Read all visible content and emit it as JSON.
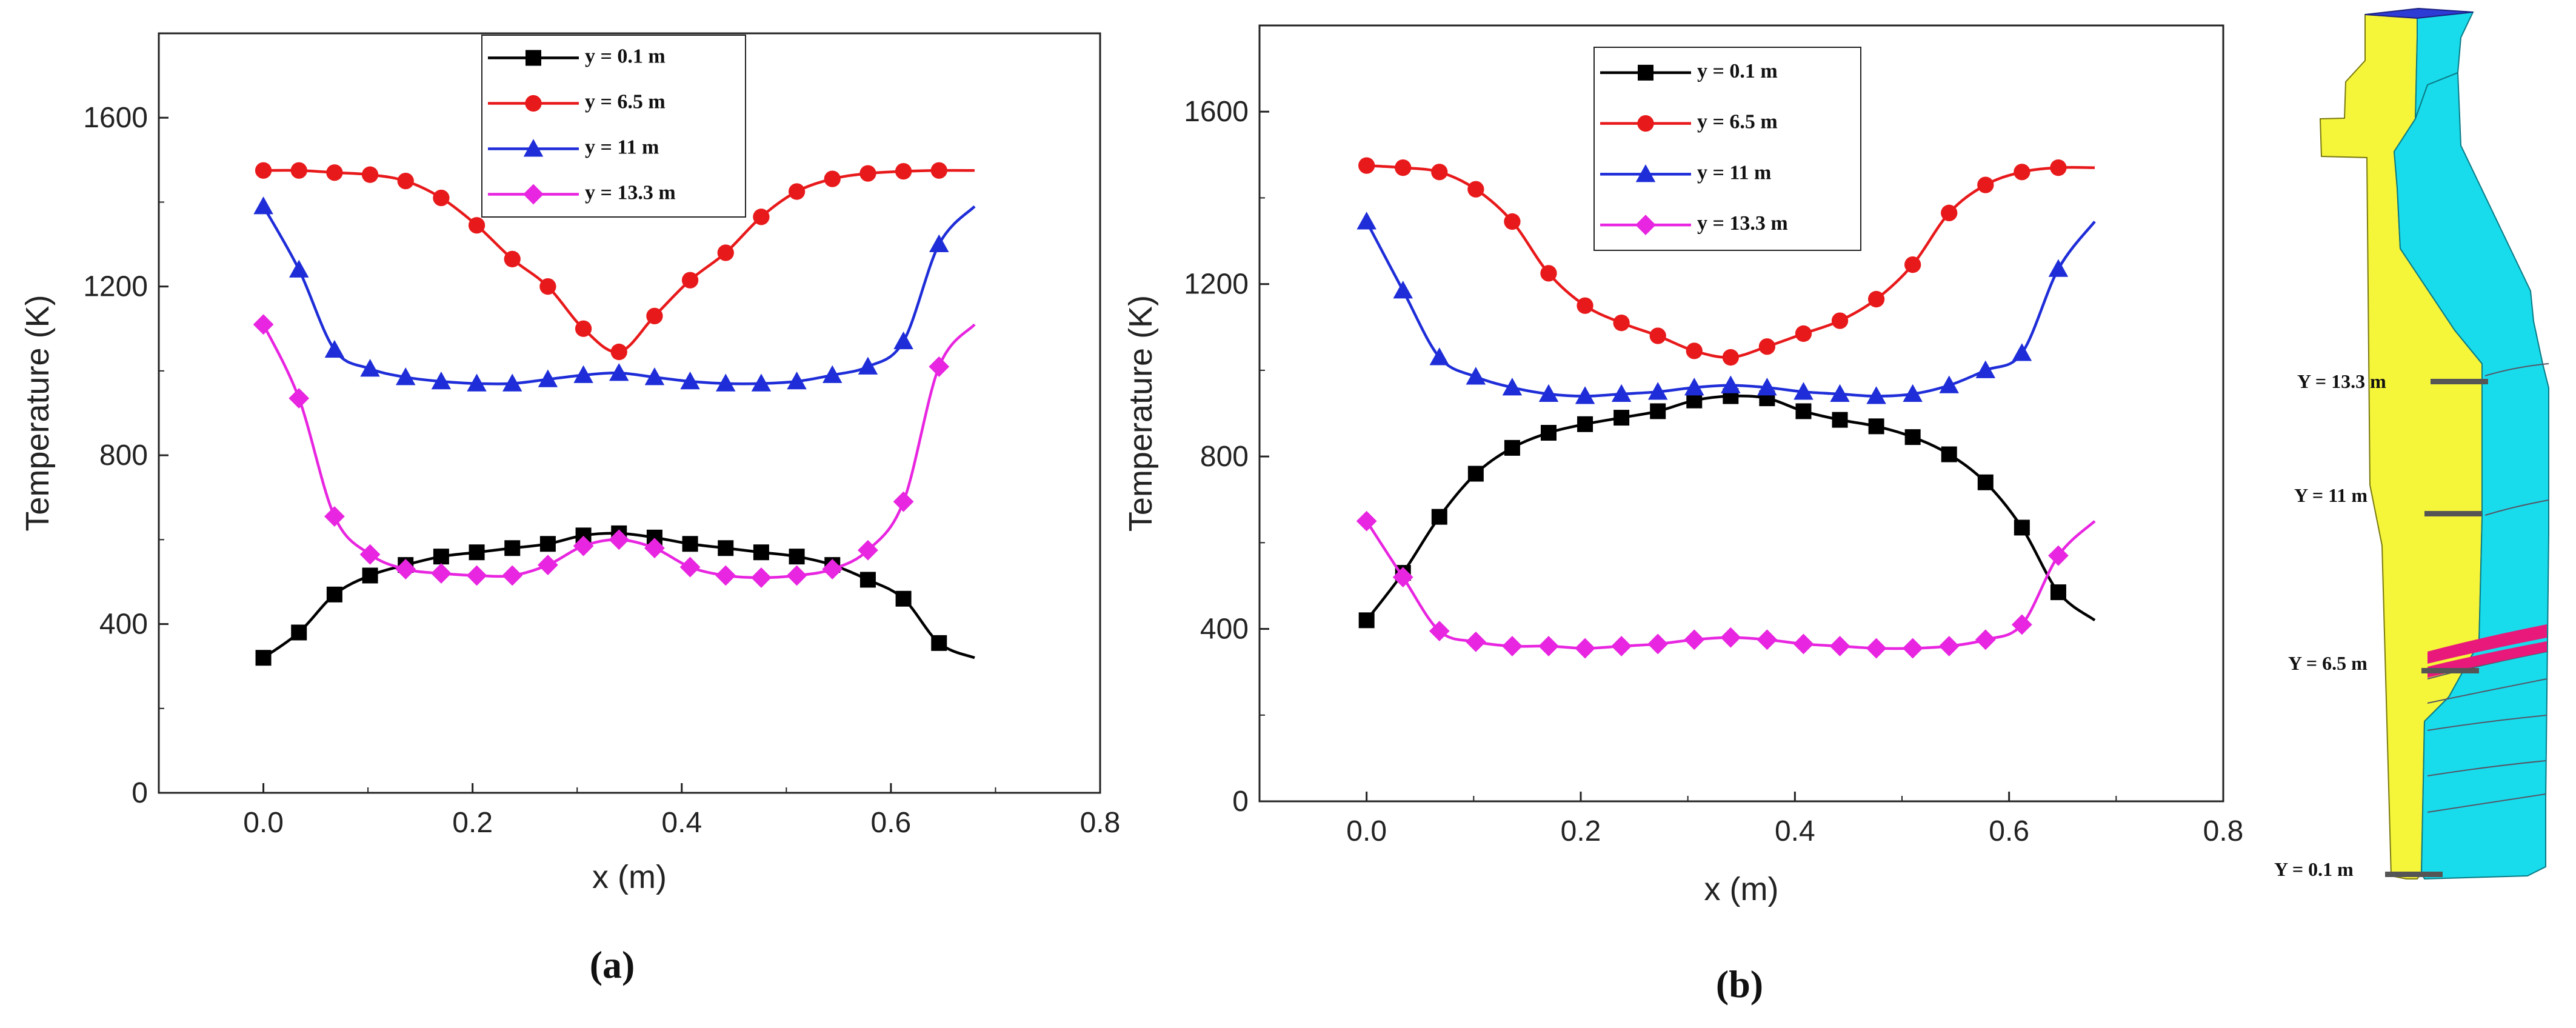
{
  "chart_data": [
    {
      "type": "line",
      "caption": "(a)",
      "xlabel": "x (m)",
      "ylabel": "Temperature (K)",
      "xlim": [
        -0.1,
        0.8
      ],
      "ylim": [
        0,
        1800
      ],
      "xticks": [
        0.0,
        0.2,
        0.4,
        0.6,
        0.8
      ],
      "xtick_labels": [
        "0.0",
        "0.2",
        "0.4",
        "0.6",
        "0.8"
      ],
      "yticks": [
        0,
        400,
        800,
        1200,
        1600
      ],
      "ytick_labels": [
        "0",
        "400",
        "800",
        "1200",
        "1600"
      ],
      "legend_position": "top-center",
      "x": [
        0.0,
        0.034,
        0.068,
        0.102,
        0.136,
        0.17,
        0.204,
        0.238,
        0.272,
        0.306,
        0.34,
        0.374,
        0.408,
        0.442,
        0.476,
        0.51,
        0.544,
        0.578,
        0.612,
        0.646,
        0.68
      ],
      "series": [
        {
          "name": "y = 0.1  m",
          "color": "#000000",
          "marker": "square",
          "values": [
            320,
            380,
            470,
            515,
            540,
            560,
            570,
            580,
            590,
            610,
            615,
            605,
            590,
            580,
            570,
            560,
            540,
            505,
            460,
            355,
            320
          ]
        },
        {
          "name": "y = 6.5 m",
          "color": "#e8191b",
          "marker": "circle",
          "values": [
            1475,
            1475,
            1470,
            1465,
            1450,
            1410,
            1345,
            1265,
            1200,
            1100,
            1045,
            1130,
            1215,
            1280,
            1365,
            1425,
            1455,
            1468,
            1473,
            1475,
            1475
          ]
        },
        {
          "name": "y =  11 m",
          "color": "#1e2dd8",
          "marker": "triangle",
          "values": [
            1390,
            1240,
            1050,
            1005,
            985,
            975,
            970,
            970,
            980,
            990,
            995,
            985,
            975,
            970,
            970,
            975,
            990,
            1010,
            1070,
            1300,
            1390
          ]
        },
        {
          "name": "y = 13.3 m",
          "color": "#e825e0",
          "marker": "diamond",
          "values": [
            1110,
            935,
            655,
            565,
            530,
            520,
            515,
            515,
            540,
            585,
            600,
            580,
            535,
            515,
            510,
            515,
            530,
            575,
            690,
            1010,
            1110
          ]
        }
      ]
    },
    {
      "type": "line",
      "caption": "(b)",
      "xlabel": "x (m)",
      "ylabel": "Temperature (K)",
      "xlim": [
        -0.1,
        0.8
      ],
      "ylim": [
        0,
        1800
      ],
      "xticks": [
        0.0,
        0.2,
        0.4,
        0.6,
        0.8
      ],
      "xtick_labels": [
        "0.0",
        "0.2",
        "0.4",
        "0.6",
        "0.8"
      ],
      "yticks": [
        0,
        400,
        800,
        1200,
        1600
      ],
      "ytick_labels": [
        "0",
        "400",
        "800",
        "1200",
        "1600"
      ],
      "legend_position": "top-center",
      "x": [
        0.0,
        0.034,
        0.068,
        0.102,
        0.136,
        0.17,
        0.204,
        0.238,
        0.272,
        0.306,
        0.34,
        0.374,
        0.408,
        0.442,
        0.476,
        0.51,
        0.544,
        0.578,
        0.612,
        0.646,
        0.68
      ],
      "series": [
        {
          "name": "y = 0.1  m",
          "color": "#000000",
          "marker": "square",
          "values": [
            420,
            530,
            660,
            760,
            820,
            855,
            875,
            890,
            905,
            930,
            940,
            935,
            905,
            885,
            870,
            845,
            805,
            740,
            635,
            485,
            420
          ]
        },
        {
          "name": "y = 6.5 m",
          "color": "#e8191b",
          "marker": "circle",
          "values": [
            1475,
            1470,
            1460,
            1420,
            1345,
            1225,
            1150,
            1110,
            1080,
            1045,
            1030,
            1055,
            1085,
            1115,
            1165,
            1245,
            1365,
            1430,
            1460,
            1470,
            1470
          ]
        },
        {
          "name": "y =  11 m",
          "color": "#1e2dd8",
          "marker": "triangle",
          "values": [
            1345,
            1185,
            1030,
            985,
            960,
            945,
            940,
            945,
            950,
            960,
            965,
            960,
            950,
            945,
            940,
            945,
            965,
            1000,
            1040,
            1235,
            1345
          ]
        },
        {
          "name": "y = 13.3 m",
          "color": "#e825e0",
          "marker": "diamond",
          "values": [
            650,
            520,
            395,
            370,
            360,
            360,
            355,
            360,
            365,
            375,
            380,
            375,
            365,
            360,
            355,
            355,
            360,
            375,
            410,
            570,
            650
          ]
        }
      ]
    }
  ],
  "geometry_labels": [
    "Y = 13.3 m",
    "Y = 11 m",
    "Y = 6.5 m",
    "Y = 0.1 m"
  ],
  "geometry_colors": {
    "inner": "#f5f53a",
    "outer": "#18dcec",
    "top": "#2e3cd6",
    "band": "#e8197a",
    "marker": "#555555"
  }
}
